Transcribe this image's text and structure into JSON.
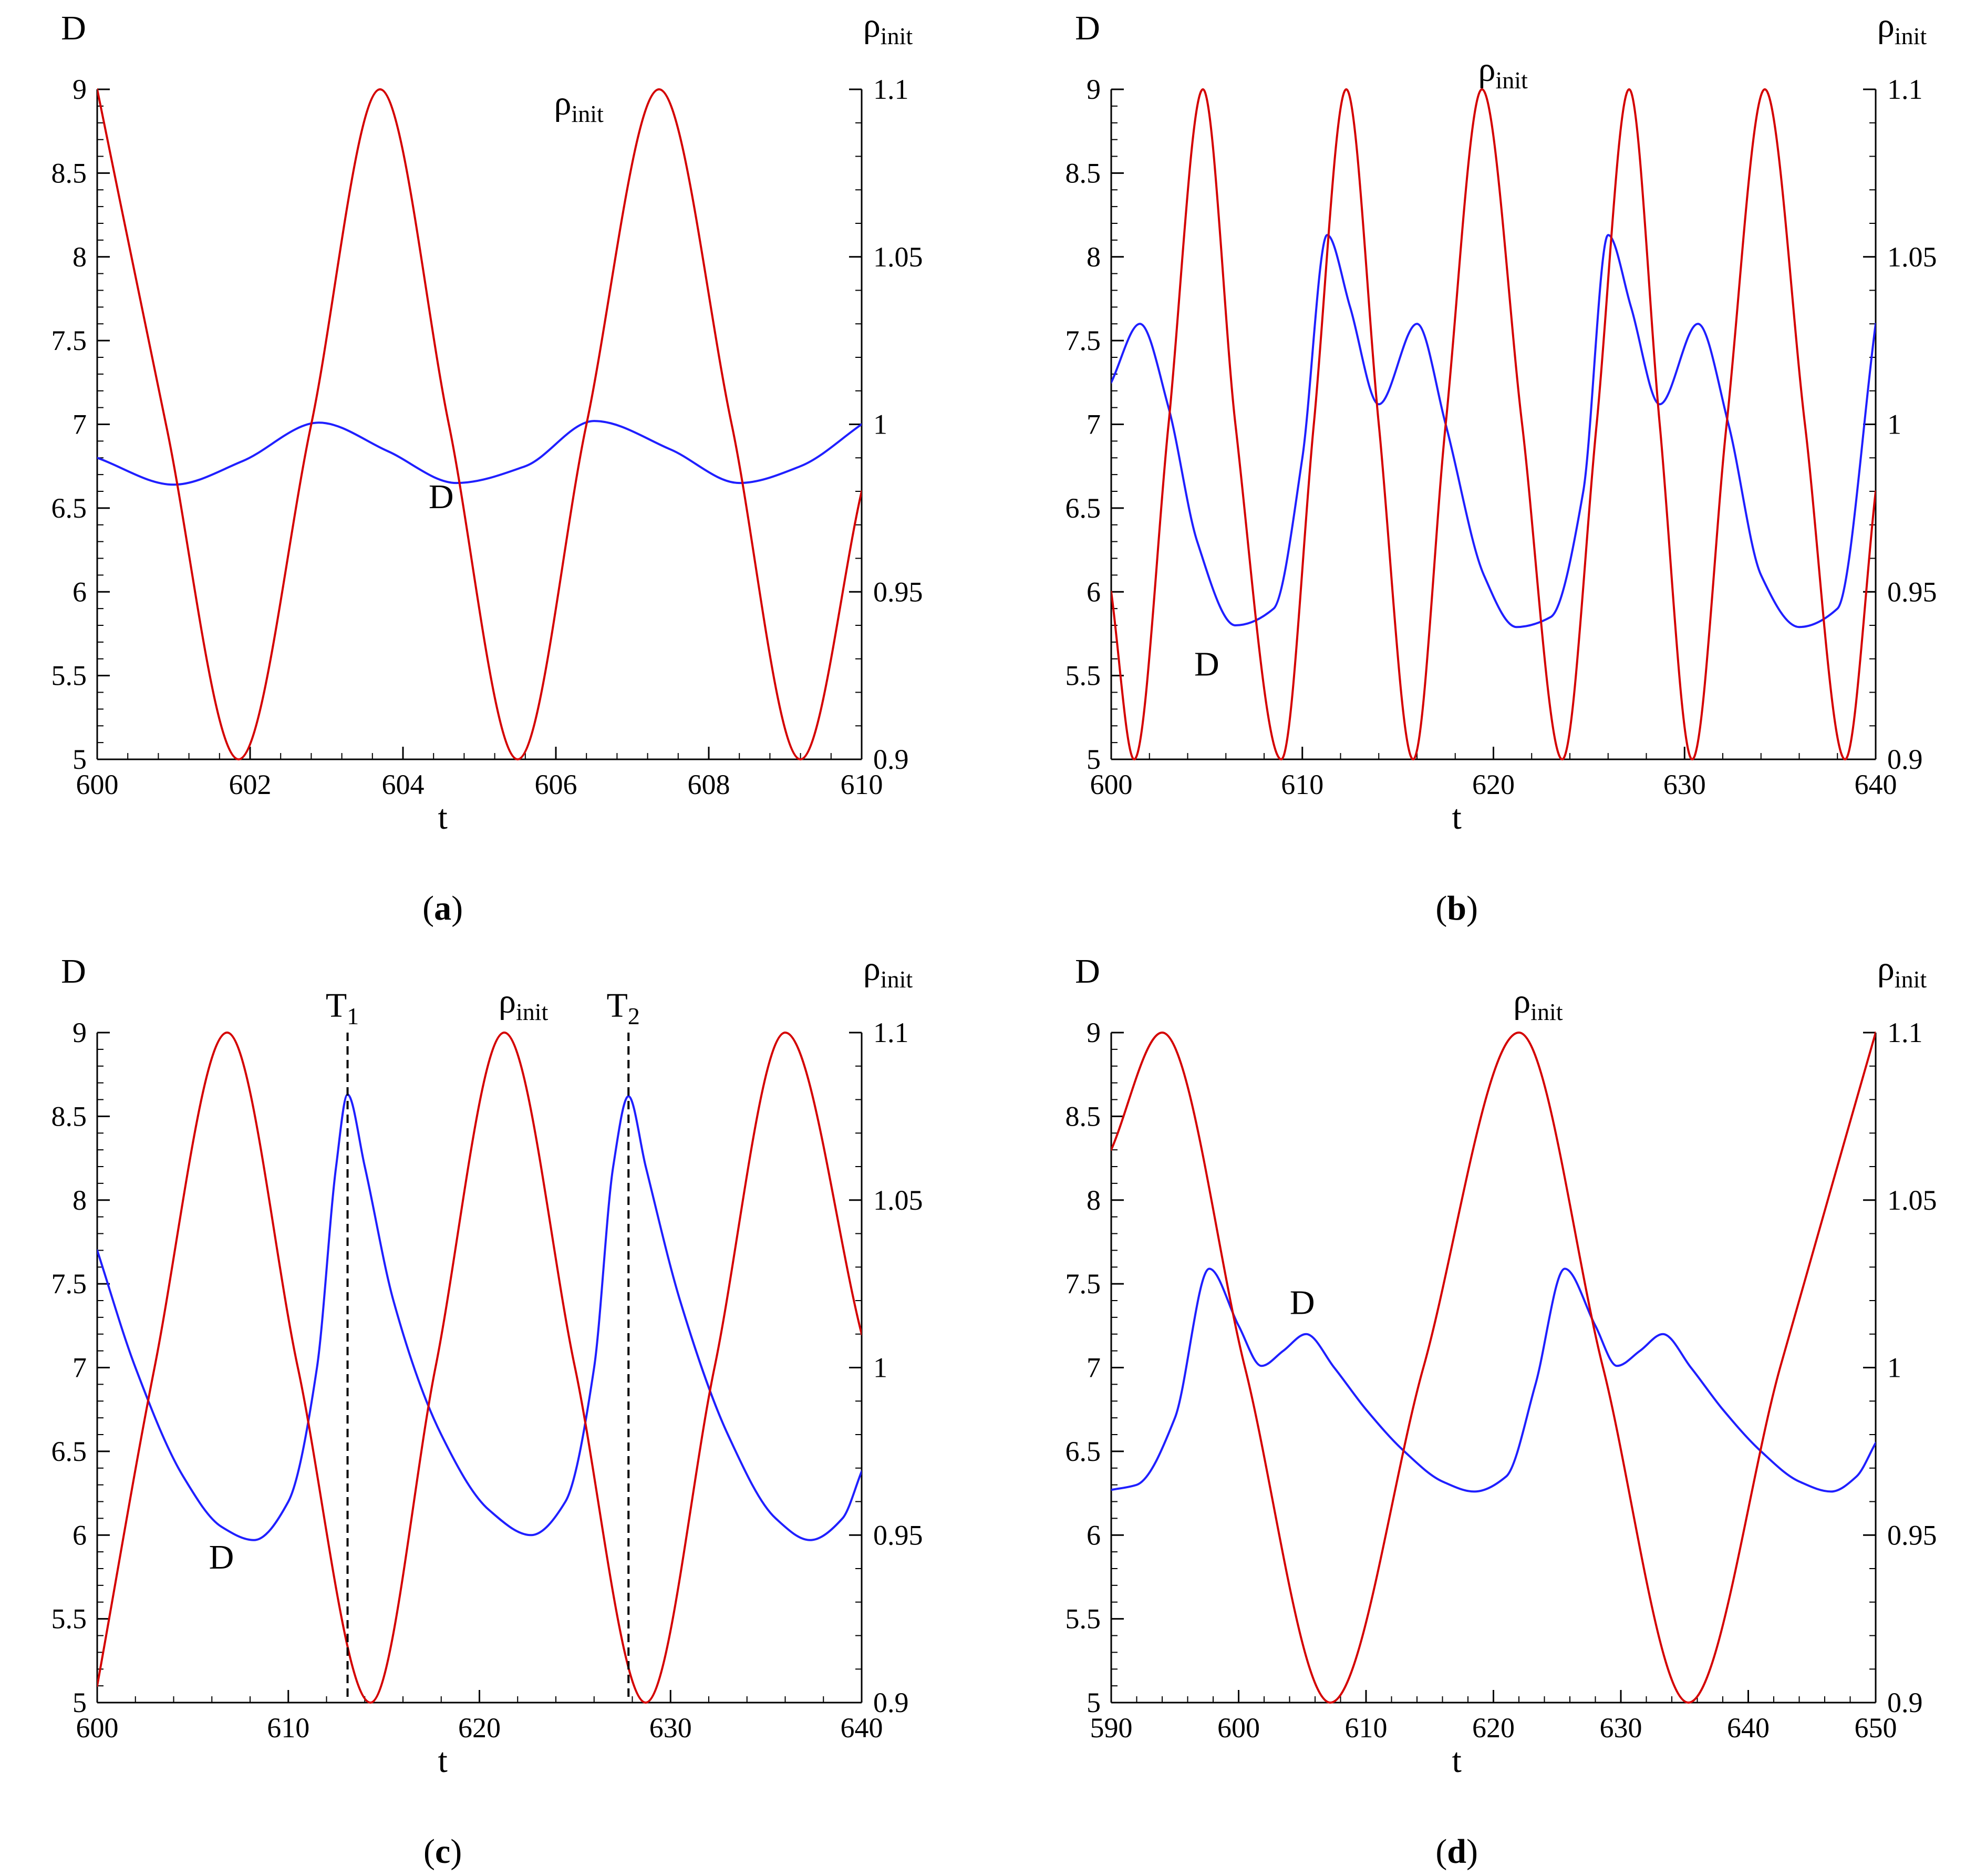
{
  "colors": {
    "d_series": "#1f1fff",
    "rho_series": "#d40000"
  },
  "chart_data": [
    {
      "panel": "a",
      "caption_letter": "a",
      "type": "line",
      "y_left_label": "D",
      "y_right_label": {
        "base": "ρ",
        "sub": "init"
      },
      "xlabel": "t",
      "xlim": [
        600,
        610
      ],
      "xticks": [
        "600",
        "602",
        "604",
        "606",
        "608",
        "610"
      ],
      "ylim_left": [
        5,
        9
      ],
      "yticks_left": [
        "5",
        "5.5",
        "6",
        "6.5",
        "7",
        "7.5",
        "8",
        "8.5",
        "9"
      ],
      "ylim_right": [
        0.9,
        1.1
      ],
      "yticks_right": [
        "0.9",
        "0.95",
        "1",
        "1.05",
        "1.1"
      ],
      "series": [
        {
          "name": "D",
          "axis": "left",
          "color": "#1f1fff",
          "x": [
            600,
            601,
            601.9,
            602.9,
            603.8,
            604.7,
            605.6,
            606.5,
            607.5,
            608.4,
            609.2,
            610
          ],
          "y": [
            6.8,
            6.64,
            6.78,
            7.01,
            6.84,
            6.65,
            6.75,
            7.02,
            6.85,
            6.65,
            6.75,
            7.0
          ]
        },
        {
          "name": "ρinit",
          "axis": "right",
          "color": "#d40000",
          "x": [
            600,
            600.9,
            601.85,
            602.8,
            603.7,
            604.6,
            605.5,
            606.4,
            607.35,
            608.3,
            609.2,
            610
          ],
          "y": [
            1.1,
            1.0,
            0.9,
            1.0,
            1.1,
            1.0,
            0.9,
            1.0,
            1.1,
            1.0,
            0.9,
            0.98
          ]
        }
      ],
      "annotations": [
        {
          "text": "D",
          "x": 604.5,
          "y": 6.5,
          "axis": "left"
        },
        {
          "text": "ρ",
          "sub": "init",
          "x": 606.3,
          "y": 8.85,
          "axis": "left"
        }
      ],
      "markers": []
    },
    {
      "panel": "b",
      "caption_letter": "b",
      "type": "line",
      "y_left_label": "D",
      "y_right_label": {
        "base": "ρ",
        "sub": "init"
      },
      "xlabel": "t",
      "xlim": [
        600,
        640
      ],
      "xticks": [
        "600",
        "610",
        "620",
        "630",
        "640"
      ],
      "ylim_left": [
        5,
        9
      ],
      "yticks_left": [
        "5",
        "5.5",
        "6",
        "6.5",
        "7",
        "7.5",
        "8",
        "8.5",
        "9"
      ],
      "ylim_right": [
        0.9,
        1.1
      ],
      "yticks_right": [
        "0.9",
        "0.95",
        "1",
        "1.05",
        "1.1"
      ],
      "series": [
        {
          "name": "D",
          "axis": "left",
          "color": "#1f1fff",
          "x": [
            600,
            601.5,
            603,
            604.5,
            606.5,
            608.5,
            610,
            611.3,
            612.5,
            614,
            616,
            617.5,
            619.5,
            621.2,
            623,
            624.7,
            626,
            627.2,
            628.7,
            630.7,
            632.3,
            634,
            636,
            638,
            640
          ],
          "y": [
            7.25,
            7.6,
            7.1,
            6.3,
            5.8,
            5.9,
            6.8,
            8.13,
            7.7,
            7.12,
            7.6,
            7.0,
            6.1,
            5.79,
            5.85,
            6.6,
            8.13,
            7.7,
            7.12,
            7.6,
            7.0,
            6.1,
            5.79,
            5.9,
            7.6
          ]
        },
        {
          "name": "ρinit",
          "axis": "right",
          "color": "#d40000",
          "x": [
            600,
            601.2,
            603,
            604.8,
            606.5,
            608.9,
            610.6,
            612.3,
            614,
            615.8,
            617.5,
            619.4,
            621.5,
            623.6,
            625.4,
            627.1,
            628.7,
            630.4,
            632.2,
            634.2,
            636.3,
            638.4,
            640
          ],
          "y": [
            0.95,
            0.9,
            1.0,
            1.1,
            1.0,
            0.9,
            1.0,
            1.1,
            1.0,
            0.9,
            1.0,
            1.1,
            1.0,
            0.9,
            1.0,
            1.1,
            1.0,
            0.9,
            1.0,
            1.1,
            1.0,
            0.9,
            0.98
          ]
        }
      ],
      "annotations": [
        {
          "text": "D",
          "x": 605,
          "y": 5.5,
          "axis": "left"
        },
        {
          "text": "ρ",
          "sub": "init",
          "x": 620.5,
          "y": 9.05,
          "axis": "left"
        }
      ],
      "markers": []
    },
    {
      "panel": "c",
      "caption_letter": "c",
      "type": "line",
      "y_left_label": "D",
      "y_right_label": {
        "base": "ρ",
        "sub": "init"
      },
      "xlabel": "t",
      "xlim": [
        600,
        640
      ],
      "xticks": [
        "600",
        "610",
        "620",
        "630",
        "640"
      ],
      "ylim_left": [
        5,
        9
      ],
      "yticks_left": [
        "5",
        "5.5",
        "6",
        "6.5",
        "7",
        "7.5",
        "8",
        "8.5",
        "9"
      ],
      "ylim_right": [
        0.9,
        1.1
      ],
      "yticks_right": [
        "0.9",
        "0.95",
        "1",
        "1.05",
        "1.1"
      ],
      "series": [
        {
          "name": "D",
          "axis": "left",
          "color": "#1f1fff",
          "x": [
            600,
            602,
            604.5,
            606.5,
            608.2,
            610,
            611.5,
            612.5,
            613.1,
            614,
            615.5,
            618,
            620.5,
            622.7,
            624.5,
            626,
            627,
            627.8,
            628.7,
            630.5,
            633,
            635.5,
            637.3,
            639,
            640
          ],
          "y": [
            7.7,
            7.0,
            6.35,
            6.05,
            5.97,
            6.2,
            7.0,
            8.2,
            8.63,
            8.2,
            7.4,
            6.6,
            6.15,
            6.0,
            6.2,
            7.0,
            8.2,
            8.62,
            8.2,
            7.4,
            6.6,
            6.1,
            5.97,
            6.1,
            6.38
          ]
        },
        {
          "name": "ρinit",
          "axis": "right",
          "color": "#d40000",
          "x": [
            600,
            603,
            606.8,
            610.5,
            614.3,
            617.7,
            621.3,
            625,
            628.7,
            632.3,
            636,
            640
          ],
          "y": [
            0.905,
            1.0,
            1.1,
            1.0,
            0.9,
            1.0,
            1.1,
            1.0,
            0.9,
            1.0,
            1.1,
            1.01
          ]
        }
      ],
      "annotations": [
        {
          "text": "D",
          "x": 606.5,
          "y": 5.8,
          "axis": "left"
        },
        {
          "text": "ρ",
          "sub": "init",
          "x": 622.3,
          "y": 9.12,
          "axis": "left"
        }
      ],
      "markers": [
        {
          "label": "T",
          "sub": "1",
          "x": 613.1
        },
        {
          "label": "T",
          "sub": "2",
          "x": 627.8
        }
      ]
    },
    {
      "panel": "d",
      "caption_letter": "d",
      "type": "line",
      "y_left_label": "D",
      "y_right_label": {
        "base": "ρ",
        "sub": "init"
      },
      "xlabel": "t",
      "xlim": [
        590,
        650
      ],
      "xticks": [
        "590",
        "600",
        "610",
        "620",
        "630",
        "640",
        "650"
      ],
      "ylim_left": [
        5,
        9
      ],
      "yticks_left": [
        "5",
        "5.5",
        "6",
        "6.5",
        "7",
        "7.5",
        "8",
        "8.5",
        "9"
      ],
      "ylim_right": [
        0.9,
        1.1
      ],
      "yticks_right": [
        "0.9",
        "0.95",
        "1",
        "1.05",
        "1.1"
      ],
      "series": [
        {
          "name": "D",
          "axis": "left",
          "color": "#1f1fff",
          "x": [
            590,
            592,
            595,
            597.7,
            600,
            601.8,
            603.5,
            605.3,
            607.5,
            610,
            613,
            616,
            618.5,
            621,
            623.3,
            625.6,
            628,
            629.7,
            631.5,
            633.3,
            635.5,
            638,
            641,
            644,
            646.5,
            648.5,
            650
          ],
          "y": [
            6.27,
            6.3,
            6.7,
            7.59,
            7.25,
            7.01,
            7.1,
            7.2,
            7.0,
            6.75,
            6.5,
            6.32,
            6.26,
            6.35,
            6.9,
            7.59,
            7.25,
            7.01,
            7.1,
            7.2,
            7.0,
            6.75,
            6.5,
            6.32,
            6.26,
            6.35,
            6.55
          ]
        },
        {
          "name": "ρinit",
          "axis": "right",
          "color": "#d40000",
          "x": [
            590,
            594,
            600.5,
            607.2,
            614.5,
            622,
            628.6,
            635.3,
            642.5,
            650
          ],
          "y": [
            1.065,
            1.1,
            1.0,
            0.9,
            1.0,
            1.1,
            1.0,
            0.9,
            1.0,
            1.1
          ]
        }
      ],
      "annotations": [
        {
          "text": "D",
          "x": 605,
          "y": 7.32,
          "axis": "left"
        },
        {
          "text": "ρ",
          "sub": "init",
          "x": 623.5,
          "y": 9.12,
          "axis": "left"
        }
      ],
      "markers": []
    }
  ]
}
